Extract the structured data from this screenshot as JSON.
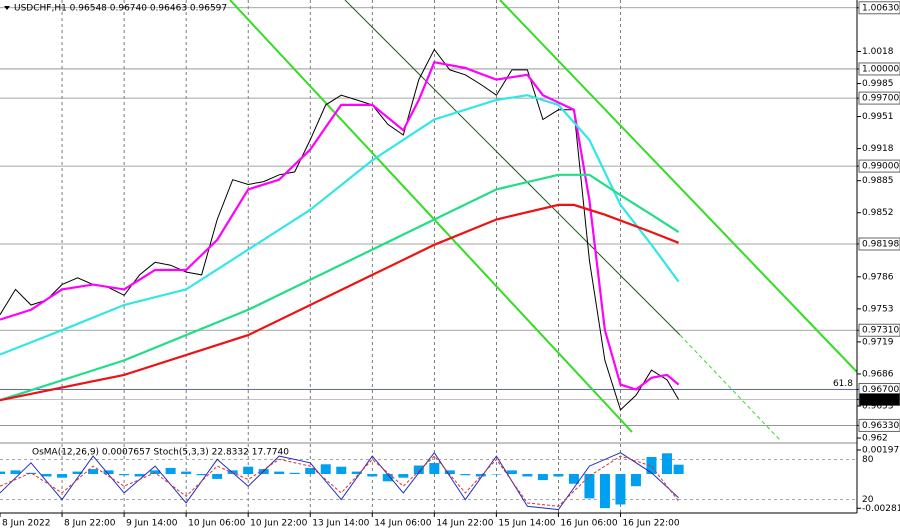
{
  "chart_data": [
    {
      "type": "line",
      "title": "USDCHF,H1  0.96548 0.96740 0.96463 0.96597",
      "xlim": [
        0,
        221
      ],
      "xticks": [
        {
          "value": 0,
          "label": "8 Jun 2022"
        },
        {
          "value": 16,
          "label": "8 Jun 22:00"
        },
        {
          "value": 32,
          "label": "9 Jun 14:00"
        },
        {
          "value": 48,
          "label": "10 Jun 06:00"
        },
        {
          "value": 64,
          "label": "10 Jun 22:00"
        },
        {
          "value": 80,
          "label": "13 Jun 14:00"
        },
        {
          "value": 96,
          "label": "14 Jun 06:00"
        },
        {
          "value": 112,
          "label": "14 Jun 22:00"
        },
        {
          "value": 128,
          "label": "15 Jun 14:00"
        },
        {
          "value": 144,
          "label": "16 Jun 06:00"
        },
        {
          "value": 160,
          "label": "16 Jun 22:00"
        }
      ],
      "ylim": [
        0.9618,
        1.0071
      ],
      "yticks": [
        {
          "value": 1.0063,
          "label": "1.00630"
        },
        1.0018,
        {
          "value": 1.0,
          "label": "1.00000"
        },
        0.9985,
        {
          "value": 0.997,
          "label": "0.99700"
        },
        0.9951,
        0.9918,
        {
          "value": 0.99,
          "label": "0.99000"
        },
        0.9885,
        0.9852,
        0.98198,
        0.9786,
        0.9753,
        {
          "value": 0.9731,
          "label": "0.97310"
        },
        0.9719,
        0.9686,
        {
          "value": 0.967,
          "label": "0.96700"
        },
        0.96597,
        0.9653,
        {
          "value": 0.9633,
          "label": "0.96330"
        },
        0.962
      ],
      "levels": [
        1.0063,
        1.0,
        0.997,
        0.99,
        0.98198,
        0.9731,
        0.9633
      ],
      "fib_level": 0.967,
      "fib_label": "61.8",
      "series": [
        {
          "color": "#000000",
          "x": [
            0,
            4,
            8,
            12,
            16,
            20,
            24,
            28,
            32,
            36,
            40,
            44,
            48,
            52,
            56,
            60,
            64,
            68,
            72,
            76,
            80,
            84,
            88,
            92,
            96,
            100,
            104,
            108,
            112,
            116,
            120,
            124,
            128,
            132,
            136,
            140,
            144,
            148,
            152,
            156,
            160,
            164,
            168,
            172,
            175
          ],
          "values": [
            0.9747,
            0.9773,
            0.9757,
            0.9762,
            0.9778,
            0.9785,
            0.9778,
            0.9775,
            0.9767,
            0.9788,
            0.9801,
            0.9798,
            0.9791,
            0.9788,
            0.9845,
            0.9886,
            0.9881,
            0.9884,
            0.9891,
            0.9894,
            0.9927,
            0.9963,
            0.9973,
            0.9968,
            0.9963,
            0.9943,
            0.9932,
            0.9989,
            1.002,
            0.9999,
            0.9994,
            0.9984,
            0.9973,
            0.9999,
            0.9999,
            0.9948,
            0.9958,
            0.9958,
            0.9803,
            0.97,
            0.9649,
            0.9664,
            0.969,
            0.968,
            0.96597
          ]
        },
        {
          "color": "#ff00ff",
          "x": [
            0,
            8,
            16,
            24,
            32,
            40,
            48,
            56,
            64,
            72,
            80,
            88,
            96,
            104,
            108,
            112,
            120,
            128,
            136,
            140,
            148,
            152,
            156,
            160,
            164,
            168,
            172,
            175
          ],
          "values": [
            0.9742,
            0.9752,
            0.9773,
            0.9778,
            0.9773,
            0.9793,
            0.9793,
            0.9824,
            0.9876,
            0.9886,
            0.9917,
            0.9963,
            0.9963,
            0.9937,
            0.9968,
            1.0007,
            1.0001,
            0.9989,
            0.9994,
            0.9973,
            0.9958,
            0.9865,
            0.9731,
            0.9675,
            0.967,
            0.9682,
            0.9685,
            0.9675
          ]
        },
        {
          "color": "#33e6e6",
          "x": [
            0,
            16,
            32,
            48,
            64,
            80,
            96,
            112,
            128,
            136,
            144,
            152,
            160,
            168,
            175
          ],
          "values": [
            0.9706,
            0.9731,
            0.9757,
            0.9773,
            0.9814,
            0.9855,
            0.9906,
            0.9948,
            0.9968,
            0.9973,
            0.9963,
            0.9927,
            0.986,
            0.9819,
            0.9781
          ]
        },
        {
          "color": "#22dd88",
          "x": [
            0,
            32,
            64,
            96,
            112,
            128,
            144,
            152,
            160,
            168,
            175
          ],
          "values": [
            0.9659,
            0.97,
            0.9752,
            0.9814,
            0.9845,
            0.9876,
            0.9891,
            0.9891,
            0.987,
            0.985,
            0.9832
          ]
        },
        {
          "color": "#ee1111",
          "x": [
            0,
            32,
            64,
            96,
            112,
            128,
            144,
            148,
            156,
            168,
            175
          ],
          "values": [
            0.9659,
            0.9685,
            0.9726,
            0.9788,
            0.9819,
            0.9845,
            0.986,
            0.986,
            0.985,
            0.9832,
            0.9821
          ]
        }
      ]
    },
    {
      "type": "indicator",
      "title": "OsMA(12,26,9) 0.0007657  Stoch(5,3,3) 22.8332 17.7740",
      "xlim": [
        0,
        221
      ],
      "ylim": [
        -0.0032,
        0.0023
      ],
      "yticks": [
        0.0019719,
        -0.002812
      ],
      "y2lim": [
        0,
        100
      ],
      "y2ticks": [
        80,
        20
      ],
      "series": [
        {
          "type": "bar",
          "color": "#00a0f0",
          "x": [
            0,
            4,
            8,
            12,
            16,
            20,
            24,
            28,
            32,
            36,
            40,
            44,
            48,
            52,
            56,
            60,
            64,
            68,
            72,
            76,
            80,
            84,
            88,
            92,
            96,
            100,
            104,
            108,
            112,
            116,
            120,
            124,
            128,
            132,
            136,
            140,
            144,
            148,
            152,
            156,
            160,
            164,
            168,
            172,
            175
          ],
          "values": [
            0.0002,
            0.0003,
            0.0001,
            -0.0002,
            -0.0003,
            0.0002,
            0.0004,
            0.0003,
            -0.0001,
            -0.0002,
            0.0003,
            0.0005,
            0.0002,
            -0.0001,
            -0.0004,
            0.0003,
            0.0006,
            0.0004,
            0.0002,
            0.0001,
            0.0005,
            0.0008,
            0.0006,
            0.0002,
            -0.0002,
            -0.0006,
            -0.0003,
            0.0007,
            0.0009,
            0.0003,
            -0.0001,
            -0.0002,
            0,
            0.0003,
            -0.0002,
            -0.0005,
            -0.0002,
            -0.0008,
            -0.002,
            -0.0028,
            -0.0025,
            -0.001,
            0.0014,
            0.0017,
            0.0007657
          ]
        },
        {
          "type": "line",
          "axis": "y2",
          "color": "#2030c0",
          "x": [
            0,
            8,
            16,
            24,
            32,
            40,
            48,
            56,
            64,
            72,
            80,
            88,
            96,
            104,
            112,
            120,
            128,
            136,
            144,
            152,
            160,
            168,
            175
          ],
          "values": [
            30,
            75,
            20,
            85,
            30,
            70,
            15,
            80,
            40,
            85,
            75,
            20,
            85,
            30,
            90,
            20,
            85,
            10,
            5,
            70,
            90,
            60,
            22.8332
          ]
        },
        {
          "type": "line",
          "axis": "y2",
          "dashed": true,
          "color": "#e03030",
          "x": [
            0,
            8,
            16,
            24,
            32,
            40,
            48,
            56,
            64,
            72,
            80,
            88,
            96,
            104,
            112,
            120,
            128,
            136,
            144,
            152,
            160,
            168,
            175
          ],
          "values": [
            40,
            60,
            30,
            70,
            40,
            60,
            25,
            70,
            50,
            80,
            70,
            30,
            80,
            40,
            85,
            30,
            80,
            15,
            10,
            55,
            85,
            70,
            17.774
          ]
        }
      ]
    }
  ]
}
